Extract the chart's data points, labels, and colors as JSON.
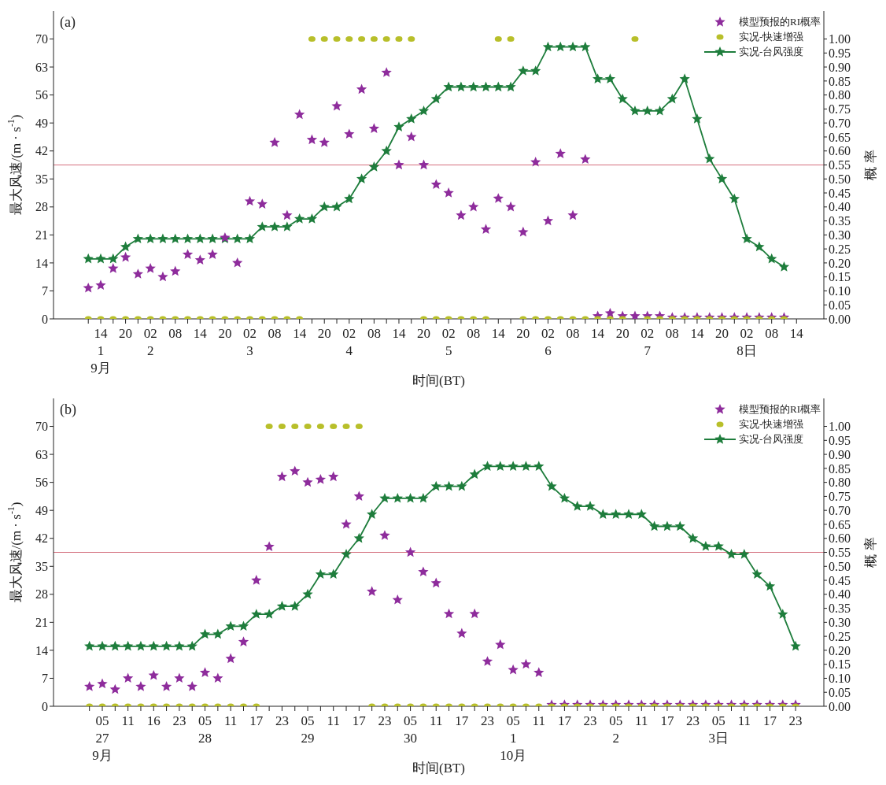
{
  "chart_data": [
    {
      "type": "line",
      "title": "(a)",
      "xlabel": "时间(BT)",
      "ylabel": "最大风速/(m · s$^{-1}$)",
      "y2label": "概 率",
      "legend": "top right",
      "categories": [
        null,
        "14\n1\n9月",
        null,
        "20",
        null,
        "02\n2",
        null,
        "08",
        null,
        "14",
        null,
        "20",
        null,
        "02\n3",
        null,
        "08",
        null,
        "14",
        null,
        "20",
        null,
        "02\n4",
        null,
        "08",
        null,
        "14",
        null,
        "20",
        null,
        "02\n5",
        null,
        "08",
        null,
        "14",
        null,
        "20",
        null,
        "02\n6",
        null,
        "08",
        null,
        "14",
        null,
        "20",
        null,
        "02\n7",
        null,
        "08",
        null,
        "14",
        null,
        "20",
        null,
        "02\n8日",
        null,
        "08",
        null,
        "14"
      ],
      "ylim": [
        0,
        77
      ],
      "yticks": [
        0,
        7,
        14,
        21,
        28,
        35,
        42,
        49,
        56,
        63,
        70
      ],
      "y2lim": [
        0,
        1.1
      ],
      "y2ticks": [
        {
          "value": 0,
          "label": "0.00"
        },
        {
          "value": 0.05,
          "label": "0.05"
        },
        {
          "value": 0.1,
          "label": "0.10"
        },
        {
          "value": 0.15,
          "label": "0.15"
        },
        {
          "value": 0.2,
          "label": "0.20"
        },
        {
          "value": 0.25,
          "label": "0.25"
        },
        {
          "value": 0.3,
          "label": "0.30"
        },
        {
          "value": 0.35,
          "label": "0.35"
        },
        {
          "value": 0.4,
          "label": "0.40"
        },
        {
          "value": 0.45,
          "label": "0.45"
        },
        {
          "value": 0.5,
          "label": "0.50"
        },
        {
          "value": 0.55,
          "label": "0.55"
        },
        {
          "value": 0.6,
          "label": "0.60"
        },
        {
          "value": 0.65,
          "label": "0.65"
        },
        {
          "value": 0.7,
          "label": "0.70"
        },
        {
          "value": 0.75,
          "label": "0.75"
        },
        {
          "value": 0.8,
          "label": "0.80"
        },
        {
          "value": 0.85,
          "label": "0.85"
        },
        {
          "value": 0.9,
          "label": "0.90"
        },
        {
          "value": 0.95,
          "label": "0.95"
        },
        {
          "value": 1,
          "label": "1.00"
        }
      ],
      "ref_lines": [
        {
          "axis": "y2",
          "value": 0.55,
          "color": "#d4707e"
        }
      ],
      "series": [
        {
          "name": "模型预报的RI概率",
          "type": "scatter",
          "marker": "star",
          "axis": "y2",
          "color": "#8e2c9c",
          "values": [
            0.11,
            0.12,
            0.18,
            0.22,
            0.16,
            0.18,
            0.15,
            0.17,
            0.23,
            0.21,
            0.23,
            0.29,
            0.2,
            0.42,
            0.41,
            0.63,
            0.37,
            0.73,
            0.64,
            0.63,
            0.76,
            0.66,
            0.82,
            0.68,
            0.88,
            0.55,
            0.65,
            0.55,
            0.48,
            0.45,
            0.37,
            0.4,
            0.32,
            0.43,
            0.4,
            0.31,
            0.56,
            0.35,
            0.59,
            0.37,
            0.57,
            0.01,
            0.02,
            0.01,
            0.01,
            0.01,
            0.01,
            0.005,
            0.005,
            0.005,
            0.005,
            0.005,
            0.005,
            0.005,
            0.005,
            0.005,
            0.005,
            null
          ]
        },
        {
          "name": "实况-快速增强",
          "type": "scatter",
          "marker": "circle",
          "axis": "y2",
          "color": "#b8bf2a",
          "values": [
            0,
            0,
            0,
            0,
            0,
            0,
            0,
            0,
            0,
            0,
            0,
            0,
            0,
            0,
            0,
            0,
            0,
            0,
            1,
            1,
            1,
            1,
            1,
            1,
            1,
            1,
            1,
            0,
            0,
            0,
            0,
            0,
            0,
            1,
            1,
            0,
            0,
            0,
            0,
            0,
            0,
            0,
            0,
            0,
            1,
            0,
            0,
            0,
            0,
            0,
            0,
            0,
            0,
            0,
            0,
            0,
            0,
            null
          ]
        },
        {
          "name": "实况-台风强度",
          "marker": "star",
          "color": "#1e7d3c",
          "values": [
            15,
            15,
            15,
            18,
            20,
            20,
            20,
            20,
            20,
            20,
            20,
            20,
            20,
            20,
            23,
            23,
            23,
            25,
            25,
            28,
            28,
            30,
            35,
            38,
            42,
            48,
            50,
            52,
            55,
            58,
            58,
            58,
            58,
            58,
            58,
            62,
            62,
            68,
            68,
            68,
            68,
            60,
            60,
            55,
            52,
            52,
            52,
            55,
            60,
            50,
            40,
            35,
            30,
            20,
            18,
            15,
            13,
            null
          ]
        }
      ]
    },
    {
      "type": "line",
      "title": "(b)",
      "xlabel": "时间(BT)",
      "ylabel": "最大风速/(m · s$^{-1}$)",
      "y2label": "概 率",
      "legend": "top right",
      "categories": [
        null,
        "05\n27\n9月",
        null,
        "11",
        null,
        "16",
        null,
        "23",
        null,
        "05\n28",
        null,
        "11",
        null,
        "17",
        null,
        "23",
        null,
        "05\n29",
        null,
        "11",
        null,
        "17",
        null,
        "23",
        null,
        "05\n30",
        null,
        "11",
        null,
        "17",
        null,
        "23",
        null,
        "05\n1\n10月",
        null,
        "11",
        null,
        "17",
        null,
        "23",
        null,
        "05\n2",
        null,
        "11",
        null,
        "17",
        null,
        "23",
        null,
        "05\n3日",
        null,
        "11",
        null,
        "17",
        null,
        "23"
      ],
      "ylim": [
        0,
        77
      ],
      "yticks": [
        0,
        7,
        14,
        21,
        28,
        35,
        42,
        49,
        56,
        63,
        70
      ],
      "y2lim": [
        0,
        1.1
      ],
      "y2ticks": [
        {
          "value": 0,
          "label": "0.00"
        },
        {
          "value": 0.05,
          "label": "0.05"
        },
        {
          "value": 0.1,
          "label": "0.10"
        },
        {
          "value": 0.15,
          "label": "0.15"
        },
        {
          "value": 0.2,
          "label": "0.20"
        },
        {
          "value": 0.25,
          "label": "0.25"
        },
        {
          "value": 0.3,
          "label": "0.30"
        },
        {
          "value": 0.35,
          "label": "0.35"
        },
        {
          "value": 0.4,
          "label": "0.40"
        },
        {
          "value": 0.45,
          "label": "0.45"
        },
        {
          "value": 0.5,
          "label": "0.50"
        },
        {
          "value": 0.55,
          "label": "0.55"
        },
        {
          "value": 0.6,
          "label": "0.60"
        },
        {
          "value": 0.65,
          "label": "0.65"
        },
        {
          "value": 0.7,
          "label": "0.70"
        },
        {
          "value": 0.75,
          "label": "0.75"
        },
        {
          "value": 0.8,
          "label": "0.80"
        },
        {
          "value": 0.85,
          "label": "0.85"
        },
        {
          "value": 0.9,
          "label": "0.90"
        },
        {
          "value": 0.95,
          "label": "0.95"
        },
        {
          "value": 1,
          "label": "1.00"
        }
      ],
      "ref_lines": [
        {
          "axis": "y2",
          "value": 0.55,
          "color": "#d4707e"
        }
      ],
      "series": [
        {
          "name": "模型预报的RI概率",
          "type": "scatter",
          "marker": "star",
          "axis": "y2",
          "color": "#8e2c9c",
          "values": [
            0.07,
            0.08,
            0.06,
            0.1,
            0.07,
            0.11,
            0.07,
            0.1,
            0.07,
            0.12,
            0.1,
            0.17,
            0.23,
            0.45,
            0.57,
            0.82,
            0.84,
            0.8,
            0.81,
            0.82,
            0.65,
            0.75,
            0.41,
            0.61,
            0.38,
            0.55,
            0.48,
            0.44,
            0.33,
            0.26,
            0.33,
            0.16,
            0.22,
            0.13,
            0.15,
            0.12,
            0.005,
            0.005,
            0.005,
            0.005,
            0.005,
            0.005,
            0.005,
            0.005,
            0.005,
            0.005,
            0.005,
            0.005,
            0.005,
            0.005,
            0.005,
            0.005,
            0.005,
            0.005,
            0.005,
            0.005
          ]
        },
        {
          "name": "实况-快速增强",
          "type": "scatter",
          "marker": "circle",
          "axis": "y2",
          "color": "#b8bf2a",
          "values": [
            0,
            0,
            0,
            0,
            0,
            0,
            0,
            0,
            0,
            0,
            0,
            0,
            0,
            0,
            1,
            1,
            1,
            1,
            1,
            1,
            1,
            1,
            0,
            0,
            0,
            0,
            0,
            0,
            0,
            0,
            0,
            0,
            0,
            0,
            0,
            0,
            0,
            0,
            0,
            0,
            0,
            0,
            0,
            0,
            0,
            0,
            0,
            0,
            0,
            0,
            0,
            0,
            0,
            0,
            0,
            0
          ]
        },
        {
          "name": "实况-台风强度",
          "marker": "star",
          "color": "#1e7d3c",
          "values": [
            15,
            15,
            15,
            15,
            15,
            15,
            15,
            15,
            15,
            18,
            18,
            20,
            20,
            23,
            23,
            25,
            25,
            28,
            33,
            33,
            38,
            42,
            48,
            52,
            52,
            52,
            52,
            55,
            55,
            55,
            58,
            60,
            60,
            60,
            60,
            60,
            55,
            52,
            50,
            50,
            48,
            48,
            48,
            48,
            45,
            45,
            45,
            42,
            40,
            40,
            38,
            38,
            33,
            30,
            23,
            15
          ]
        }
      ]
    }
  ]
}
